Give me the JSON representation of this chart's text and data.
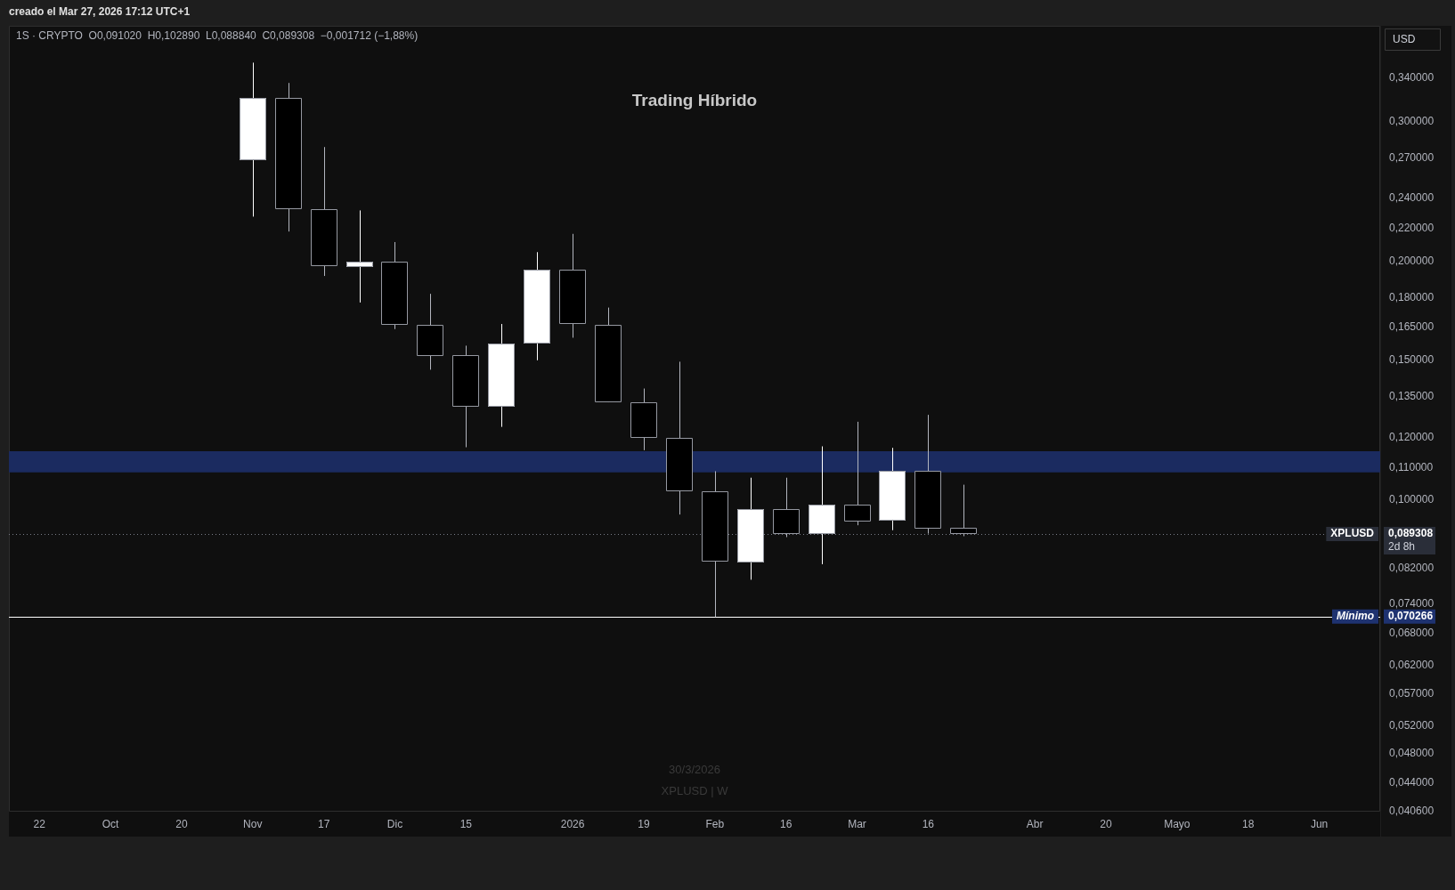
{
  "chart_data": {
    "type": "candlestick",
    "subtitle": "Trading Híbrido",
    "ylabel": "USD",
    "annotations": [
      "creado el Mar 27, 2026 17:12 UTC+1",
      "1S · CRYPTO  O0,091020  H0,102890  L0,088840  C0,089308  −0,001712 (−1,88%)",
      "2d 8h",
      "30/3/2026",
      "XPLUSD | W",
      "0,089308",
      "0,070266"
    ],
    "x": [
      "2025-11-03",
      "2025-11-10",
      "2025-11-17",
      "2025-11-24",
      "2025-12-01",
      "2025-12-08",
      "2025-12-15",
      "2025-12-22",
      "2025-12-29",
      "2026-01-05",
      "2026-01-12",
      "2026-01-19",
      "2026-01-26",
      "2026-02-02",
      "2026-02-09",
      "2026-02-16",
      "2026-02-23",
      "2026-03-02",
      "2026-03-09",
      "2026-03-16",
      "2026-03-23"
    ],
    "ohlc": [
      [
        0.264,
        0.35,
        0.2245,
        0.316
      ],
      [
        0.316,
        0.33,
        0.215,
        0.229
      ],
      [
        0.229,
        0.274,
        0.189,
        0.194
      ],
      [
        0.194,
        0.228,
        0.175,
        0.197
      ],
      [
        0.197,
        0.208,
        0.162,
        0.164
      ],
      [
        0.164,
        0.179,
        0.144,
        0.15
      ],
      [
        0.15,
        0.154,
        0.115,
        0.129
      ],
      [
        0.129,
        0.164,
        0.122,
        0.155
      ],
      [
        0.155,
        0.202,
        0.148,
        0.192
      ],
      [
        0.192,
        0.213,
        0.158,
        0.164
      ],
      [
        0.164,
        0.172,
        0.131,
        0.131
      ],
      [
        0.131,
        0.136,
        0.114,
        0.118
      ],
      [
        0.118,
        0.147,
        0.0946,
        0.101
      ],
      [
        0.101,
        0.107,
        0.070266,
        0.0823
      ],
      [
        0.0823,
        0.105,
        0.0783,
        0.096
      ],
      [
        0.096,
        0.105,
        0.0886,
        0.0893
      ],
      [
        0.0893,
        0.115,
        0.0819,
        0.0973
      ],
      [
        0.0973,
        0.1235,
        0.0917,
        0.0927
      ],
      [
        0.0927,
        0.1145,
        0.0904,
        0.1072
      ],
      [
        0.1072,
        0.126,
        0.0895,
        0.0907
      ],
      [
        0.09102,
        0.10289,
        0.08884,
        0.089308
      ]
    ],
    "colors": [
      "#ffffff",
      "#000000",
      "#000000",
      "#ffffff",
      "#000000",
      "#000000",
      "#000000",
      "#ffffff",
      "#ffffff",
      "#000000",
      "#000000",
      "#000000",
      "#000000",
      "#000000",
      "#ffffff",
      "#000000",
      "#ffffff",
      "#000000",
      "#ffffff",
      "#000000",
      "#000000"
    ],
    "xlim": [
      "2025-09-16",
      "2026-06-13"
    ],
    "xticks": [
      {
        "value": "2025-09-22",
        "label": "22"
      },
      {
        "value": "2025-10-06",
        "label": "Oct"
      },
      {
        "value": "2025-10-20",
        "label": "20"
      },
      {
        "value": "2025-11-03",
        "label": "Nov"
      },
      {
        "value": "2025-11-17",
        "label": "17"
      },
      {
        "value": "2025-12-01",
        "label": "Dic"
      },
      {
        "value": "2025-12-15",
        "label": "15"
      },
      {
        "value": "2026-01-05",
        "label": "2026"
      },
      {
        "value": "2026-01-19",
        "label": "19"
      },
      {
        "value": "2026-02-02",
        "label": "Feb"
      },
      {
        "value": "2026-02-16",
        "label": "16"
      },
      {
        "value": "2026-03-02",
        "label": "Mar"
      },
      {
        "value": "2026-03-16",
        "label": "16"
      },
      {
        "value": "2026-04-06",
        "label": "Abr"
      },
      {
        "value": "2026-04-20",
        "label": "20"
      },
      {
        "value": "2026-05-04",
        "label": "Mayo"
      },
      {
        "value": "2026-05-18",
        "label": "18"
      },
      {
        "value": "2026-06-01",
        "label": "Jun"
      }
    ],
    "ylim": [
      0.0399,
      0.39
    ],
    "yticks": [
      {
        "value": 0.34,
        "label": "0,340000"
      },
      {
        "value": 0.3,
        "label": "0,300000"
      },
      {
        "value": 0.27,
        "label": "0,270000"
      },
      {
        "value": 0.24,
        "label": "0,240000"
      },
      {
        "value": 0.22,
        "label": "0,220000"
      },
      {
        "value": 0.2,
        "label": "0,200000"
      },
      {
        "value": 0.18,
        "label": "0,180000"
      },
      {
        "value": 0.165,
        "label": "0,165000"
      },
      {
        "value": 0.15,
        "label": "0,150000"
      },
      {
        "value": 0.135,
        "label": "0,135000"
      },
      {
        "value": 0.12,
        "label": "0,120000"
      },
      {
        "value": 0.11,
        "label": "0,110000"
      },
      {
        "value": 0.1,
        "label": "0,100000"
      },
      {
        "value": 0.082,
        "label": "0,082000"
      },
      {
        "value": 0.074,
        "label": "0,074000"
      },
      {
        "value": 0.068,
        "label": "0,068000"
      },
      {
        "value": 0.062,
        "label": "0,062000"
      },
      {
        "value": 0.057,
        "label": "0,057000"
      },
      {
        "value": 0.052,
        "label": "0,052000"
      },
      {
        "value": 0.048,
        "label": "0,048000"
      },
      {
        "value": 0.044,
        "label": "0,044000"
      },
      {
        "value": 0.0406,
        "label": "0,040600"
      }
    ],
    "log": true,
    "grid": false,
    "legend": false,
    "bands": [
      {
        "axis": "y",
        "from": 0.1068,
        "to": 0.1135,
        "color": "#1b2b60"
      }
    ],
    "ref_lines": [
      {
        "axis": "y",
        "value": 0.089308,
        "label": "XPLUSD",
        "color": "#787b86",
        "line_style": "dotted"
      },
      {
        "axis": "y",
        "value": 0.070266,
        "label": "Mínimo",
        "color": "#ffffff",
        "line_style": "solid"
      }
    ]
  }
}
